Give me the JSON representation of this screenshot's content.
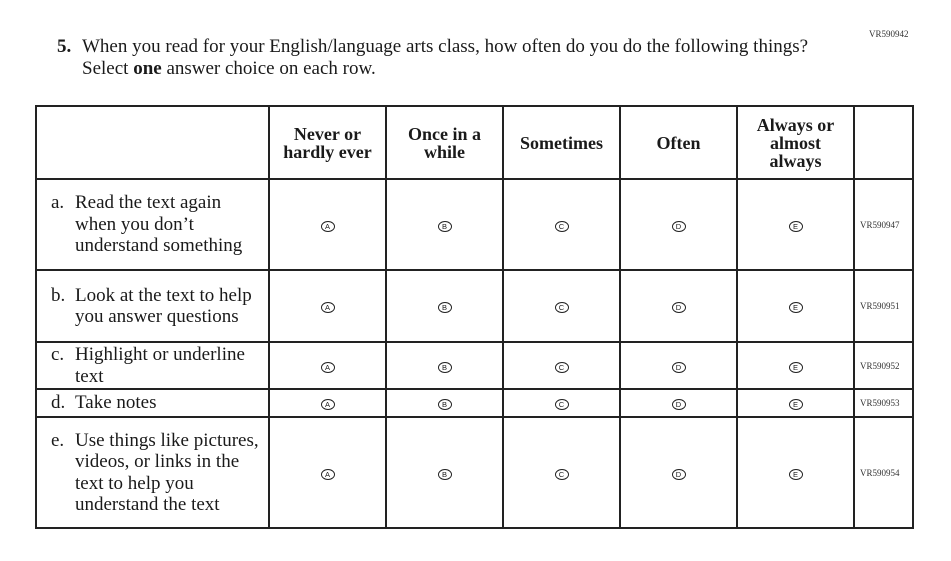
{
  "item_code": "VR590942",
  "question": {
    "number": "5.",
    "text_before": "When you read for your English/language arts class, how often do you do the following things? Select ",
    "emphasis": "one",
    "text_after": " answer choice on each row."
  },
  "columns": [
    "Never or hardly ever",
    "Once in a while",
    "Sometimes",
    "Often",
    "Always or almost always"
  ],
  "bubble_letters": [
    "A",
    "B",
    "C",
    "D",
    "E"
  ],
  "rows": [
    {
      "letter": "a.",
      "text": "Read the text again when you don’t understand something",
      "code": "VR590947"
    },
    {
      "letter": "b.",
      "text": "Look at the text to help you answer questions",
      "code": "VR590951"
    },
    {
      "letter": "c.",
      "text": "Highlight or underline text",
      "code": "VR590952"
    },
    {
      "letter": "d.",
      "text": "Take notes",
      "code": "VR590953"
    },
    {
      "letter": "e.",
      "text": "Use things like pictures, videos, or links in the text to help you understand the text",
      "code": "VR590954"
    }
  ]
}
